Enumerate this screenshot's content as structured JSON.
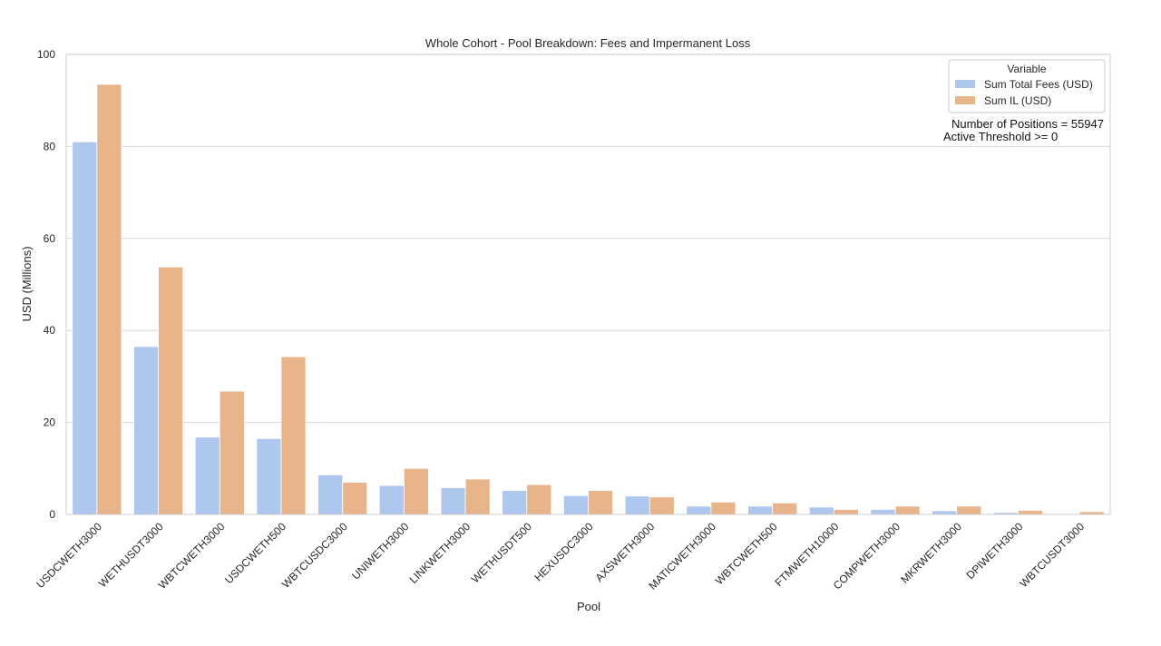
{
  "chart_data": {
    "type": "bar",
    "title": "Whole Cohort - Pool Breakdown: Fees and Impermanent Loss",
    "xlabel": "Pool",
    "ylabel": "USD (Millions)",
    "ylim": [
      0,
      100
    ],
    "yticks": [
      0,
      20,
      40,
      60,
      80,
      100
    ],
    "grid": "horizontal",
    "legend_position": "top-right",
    "legend_title": "Variable",
    "categories": [
      "USDCWETH3000",
      "WETHUSDT3000",
      "WBTCWETH3000",
      "USDCWETH500",
      "WBTCUSDC3000",
      "UNIWETH3000",
      "LINKWETH3000",
      "WETHUSDT500",
      "HEXUSDC3000",
      "AXSWETH3000",
      "MATICWETH3000",
      "WBTCWETH500",
      "FTMWETH10000",
      "COMPWETH3000",
      "MKRWETH3000",
      "DPIWETH3000",
      "WBTCUSDT3000"
    ],
    "series": [
      {
        "name": "Sum Total Fees (USD)",
        "color": "#aec7ef",
        "values": [
          81,
          36.5,
          16.8,
          16.5,
          8.6,
          6.3,
          5.8,
          5.2,
          4.1,
          4.0,
          1.8,
          1.8,
          1.6,
          1.1,
          0.8,
          0.4,
          0.1
        ]
      },
      {
        "name": "Sum IL (USD)",
        "color": "#e8b58a",
        "values": [
          93.5,
          53.8,
          26.8,
          34.3,
          7.0,
          10.0,
          7.7,
          6.5,
          5.2,
          3.8,
          2.7,
          2.5,
          1.1,
          1.8,
          1.8,
          0.9,
          0.6
        ]
      }
    ],
    "annotations": [
      "Number of Positions = 55947",
      "Active Threshold >= 0"
    ]
  }
}
